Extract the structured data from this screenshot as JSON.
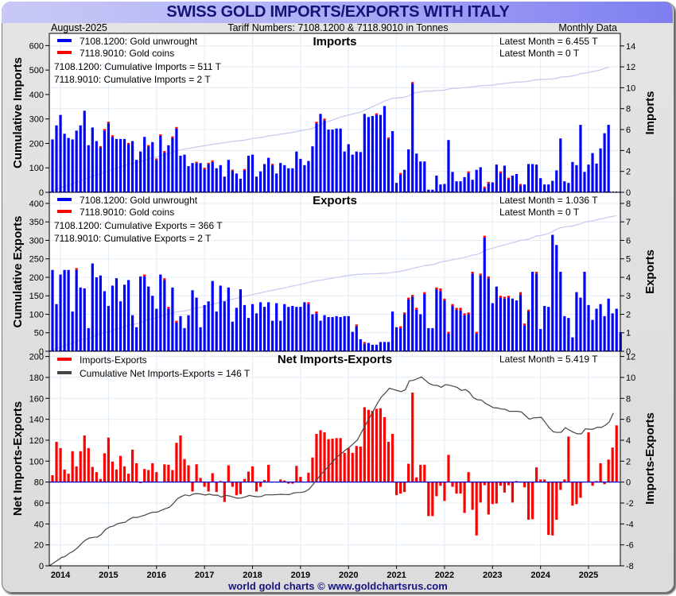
{
  "header": {
    "title": "SWISS GOLD IMPORTS/EXPORTS WITH ITALY",
    "date": "August-2025",
    "tariff": "Tariff Numbers: 7108.1200 & 7118.9010 in Tonnes",
    "frequency": "Monthly Data"
  },
  "footer": "world gold charts © www.goldchartsrus.com",
  "colors": {
    "unwrought": "#0000ff",
    "coins": "#ff0000",
    "net": "#ff0000",
    "cumulative_net": "#444444",
    "cumulative_light": "#c8c8f0",
    "grid": "#e2ecf6"
  },
  "chart_data": [
    {
      "type": "bar",
      "title": "Imports",
      "ylabel_left": "Cumulative Imports",
      "ylabel_right": "Imports",
      "ylim_left": [
        0,
        650
      ],
      "yticks_left": [
        0,
        100,
        200,
        300,
        400,
        500,
        600
      ],
      "ylim_right": [
        0,
        15.2
      ],
      "yticks_right": [
        0,
        2,
        4,
        6,
        8,
        10,
        12,
        14
      ],
      "legend": [
        "7108.1200: Gold unwrought",
        "7118.9010: Gold coins"
      ],
      "annotations": [
        "7108.1200: Cumulative Imports = 511 T",
        "7118.9010: Cumulative Imports = 2 T",
        "Latest Month = 6.455 T",
        "Latest Month = 0 T"
      ],
      "start": "2013-11",
      "series": [
        {
          "name": "7108.1200: Gold unwrought",
          "values": [
            5.06,
            6.4,
            7.4,
            5.6,
            5.2,
            5.06,
            5.9,
            6.4,
            7.8,
            4.5,
            6.2,
            4.9,
            4.3,
            5.9,
            6.6,
            5.3,
            5.1,
            5.1,
            5.1,
            4.6,
            4.9,
            3.1,
            3.9,
            5.3,
            4.4,
            4.8,
            3.1,
            5.4,
            3.8,
            4.5,
            5.2,
            6.1,
            3.5,
            3.6,
            2.5,
            2.8,
            2.8,
            2.8,
            2.2,
            2.7,
            2.9,
            2.3,
            2.6,
            1.5,
            3.1,
            2.05,
            1.8,
            1.3,
            2.1,
            3.5,
            3.6,
            1.5,
            2.0,
            2.7,
            3.3,
            2.6,
            1.8,
            2.8,
            2.6,
            2.3,
            2.3,
            3.9,
            3.2,
            2.6,
            3.0,
            4.4,
            6.6,
            7.5,
            6.9,
            6.0,
            6.0,
            6.1,
            6.1,
            3.9,
            4.6,
            3.6,
            3.9,
            3.85,
            7.5,
            7.2,
            7.3,
            7.4,
            7.4,
            8.25,
            5.1,
            5.85,
            0.9,
            1.7,
            2.15,
            4.1,
            10.4,
            3.7,
            2.95,
            2.95,
            0.25,
            0.25,
            1.6,
            0.75,
            0.8,
            5.0,
            1.95,
            1.05,
            1.05,
            1.45,
            1.85,
            1.2,
            2.15,
            2.4,
            0.4,
            0.85,
            0.95,
            2.65,
            1.85,
            2.55,
            1.25,
            1.6,
            1.75,
            0.65,
            0.75,
            2.7,
            2.7,
            2.65,
            1.35,
            0.75,
            0.75,
            1.1,
            2.1,
            5.15,
            1.05,
            0.9,
            2.9,
            2.6,
            6.45,
            1.95,
            2.65,
            3.75,
            2.75,
            4.2,
            5.65,
            6.455
          ]
        },
        {
          "name": "7118.9010: Gold coins",
          "values": [
            0,
            0,
            0,
            0,
            0,
            0,
            0,
            0,
            0,
            0,
            0,
            0,
            0.12,
            0.15,
            0.15,
            0.15,
            0,
            0,
            0,
            0.12,
            0,
            0,
            0,
            0,
            0.12,
            0,
            0.14,
            0.14,
            0.15,
            0,
            0.15,
            0.15,
            0,
            0,
            0,
            0,
            0.12,
            0,
            0.15,
            0.12,
            0.15,
            0,
            0,
            0,
            0,
            0.12,
            0,
            0,
            0.12,
            0,
            0,
            0,
            0,
            0,
            0,
            0.12,
            0,
            0,
            0,
            0,
            0,
            0,
            0,
            0,
            0,
            0,
            0.15,
            0,
            0.15,
            0,
            0,
            0,
            0,
            0,
            0,
            0,
            0,
            0,
            0,
            0,
            0,
            0.15,
            0,
            0,
            0.15,
            0,
            0,
            0.15,
            0,
            0,
            0.15,
            0,
            0,
            0,
            0,
            0,
            0,
            0,
            0,
            0,
            0,
            0,
            0,
            0,
            0.15,
            0,
            0,
            0,
            0.15,
            0.15,
            0,
            0,
            0.15,
            0,
            0.15,
            0,
            0,
            0.15,
            0,
            0,
            0,
            0,
            0,
            0,
            0,
            0,
            0,
            0,
            0,
            0,
            0,
            0,
            0,
            0,
            0,
            0,
            0,
            0,
            0,
            0
          ]
        },
        {
          "name": "Cumulative (left axis)",
          "values_note": "light line rising from 0 to ~513",
          "endpoints": [
            0,
            513
          ]
        }
      ]
    },
    {
      "type": "bar",
      "title": "Exports",
      "ylabel_left": "Cumulative Exports",
      "ylabel_right": "Exports",
      "ylim_left": [
        0,
        430
      ],
      "yticks_left": [
        0,
        50,
        100,
        150,
        200,
        250,
        300,
        350,
        400
      ],
      "ylim_right": [
        0,
        8.6
      ],
      "yticks_right": [
        0,
        1,
        2,
        3,
        4,
        5,
        6,
        7,
        8
      ],
      "legend": [
        "7108.1200: Gold unwrought",
        "7118.9010: Gold coins"
      ],
      "annotations": [
        "7108.1200: Cumulative Exports = 366 T",
        "7118.9010: Cumulative Exports = 2 T",
        "Latest Month = 1.036 T",
        "Latest Month = 0 T"
      ],
      "start": "2013-11",
      "series": [
        {
          "name": "7108.1200: Gold unwrought",
          "values": [
            4.4,
            2.55,
            4.15,
            4.4,
            4.4,
            2.15,
            4.4,
            3.45,
            3.4,
            1.25,
            4.75,
            4.0,
            4.1,
            3.25,
            2.45,
            3.55,
            3.95,
            2.7,
            3.6,
            3.85,
            1.95,
            1.3,
            4.05,
            4.05,
            3.5,
            3.0,
            2.3,
            4.15,
            3.85,
            2.3,
            3.45,
            1.55,
            1.9,
            1.25,
            1.95,
            3.3,
            2.9,
            1.3,
            2.5,
            2.7,
            3.8,
            2.15,
            3.55,
            2.7,
            3.45,
            1.6,
            2.35,
            3.35,
            2.5,
            1.8,
            2.55,
            2.05,
            2.65,
            2.4,
            2.65,
            1.65,
            2.6,
            1.65,
            2.55,
            2.4,
            2.45,
            2.4,
            2.4,
            2.65,
            2.55,
            2.0,
            2.05,
            1.65,
            1.95,
            1.85,
            1.85,
            1.9,
            1.85,
            1.9,
            1.9,
            1.05,
            1.35,
            0.65,
            0.4,
            0.45,
            0.35,
            0.35,
            0.5,
            0.5,
            0.5,
            2.15,
            1.3,
            1.25,
            2.0,
            2.8,
            2.95,
            2.25,
            2.0,
            3.1,
            1.25,
            1.25,
            3.35,
            3.25,
            2.75,
            0.95,
            2.45,
            2.25,
            2.2,
            1.95,
            2.0,
            4.2,
            0.95,
            4.1,
            6.15,
            3.95,
            2.6,
            3.5,
            2.9,
            2.85,
            2.9,
            2.85,
            2.75,
            3.05,
            1.4,
            2.15,
            4.3,
            4.2,
            1.2,
            2.45,
            2.4,
            6.3,
            5.75,
            4.3,
            1.9,
            1.8,
            0.75,
            3.2,
            2.9,
            4.3,
            2.5,
            1.7,
            2.3,
            2.55,
            1.9,
            2.85,
            2.05,
            2.3,
            1.036
          ]
        },
        {
          "name": "7118.9010: Gold coins",
          "values": [
            0,
            0,
            0,
            0,
            0,
            0,
            0.1,
            0,
            0,
            0,
            0,
            0,
            0,
            0,
            0,
            0,
            0,
            0,
            0,
            0,
            0,
            0,
            0,
            0.1,
            0,
            0,
            0,
            0,
            0.1,
            0.1,
            0,
            0.1,
            0,
            0,
            0,
            0,
            0,
            0,
            0,
            0,
            0,
            0,
            0,
            0,
            0,
            0,
            0,
            0,
            0,
            0,
            0,
            0,
            0,
            0,
            0,
            0,
            0,
            0,
            0,
            0,
            0,
            0,
            0,
            0,
            0.1,
            0,
            0.1,
            0,
            0,
            0,
            0,
            0,
            0,
            0,
            0,
            0,
            0.1,
            0,
            0.1,
            0,
            0,
            0,
            0,
            0,
            0,
            0,
            0,
            0.1,
            0.1,
            0.1,
            0.1,
            0.1,
            0,
            0.1,
            0,
            0,
            0.1,
            0.15,
            0.1,
            0.1,
            0.1,
            0.1,
            0.15,
            0.1,
            0.1,
            0.1,
            0.1,
            0.1,
            0.1,
            0.1,
            0,
            0,
            0.1,
            0.1,
            0.1,
            0,
            0,
            0.15,
            0.1,
            0.1,
            0,
            0.1,
            0,
            0,
            0,
            0,
            0,
            0,
            0,
            0,
            0,
            0,
            0,
            0,
            0,
            0,
            0,
            0,
            0,
            0,
            0,
            0
          ]
        },
        {
          "name": "Cumulative (left axis)",
          "values_note": "light line rising from 0 to ~368",
          "endpoints": [
            0,
            368
          ]
        }
      ]
    },
    {
      "type": "bar",
      "title": "Net Imports-Exports",
      "ylabel_left": "Net Imports-Exports",
      "ylabel_right": "Imports-Exports",
      "ylim_left": [
        0,
        205
      ],
      "yticks_left": [
        0,
        20,
        40,
        60,
        80,
        100,
        120,
        140,
        160,
        180,
        200
      ],
      "ylim_right": [
        -8,
        12.5
      ],
      "yticks_right": [
        -8,
        -6,
        -4,
        -2,
        0,
        2,
        4,
        6,
        8,
        10,
        12
      ],
      "legend": [
        "Imports-Exports",
        "Cumulative Net Imports-Exports = 146 T"
      ],
      "annotations": [
        "Latest Month = 5.419 T"
      ],
      "xticks": [
        "2014",
        "2015",
        "2016",
        "2017",
        "2018",
        "2019",
        "2020",
        "2021",
        "2022",
        "2023",
        "2024",
        "2025"
      ],
      "start": "2013-11",
      "series": [
        {
          "name": "Imports-Exports",
          "values": [
            0.66,
            3.85,
            3.25,
            1.2,
            0.8,
            2.95,
            1.5,
            2.95,
            4.45,
            3.25,
            1.45,
            0.95,
            0.3,
            2.75,
            4.25,
            1.95,
            1.2,
            2.5,
            1.5,
            0.8,
            3.1,
            1.8,
            -0.1,
            1.25,
            1.15,
            1.8,
            0.95,
            0.05,
            1.7,
            1.65,
            1.15,
            3.75,
            4.45,
            2.2,
            1.6,
            -0.9,
            1.7,
            0.4,
            -0.45,
            -0.9,
            0.85,
            -0.95,
            0.1,
            -1.9,
            1.6,
            -0.45,
            -1.25,
            -1.15,
            0.3,
            1.0,
            1.5,
            -0.9,
            -0.45,
            0.2,
            1.65,
            0,
            0.05,
            0.25,
            0.15,
            -0.15,
            -0.15,
            1.55,
            0.5,
            0.05,
            0.9,
            2.35,
            4.6,
            4.95,
            4.75,
            4.1,
            4.15,
            4.2,
            4.2,
            2.8,
            3.25,
            2.8,
            3.45,
            3.4,
            7.15,
            6.9,
            6.8,
            7.0,
            7.05,
            6.2,
            3.85,
            4.6,
            -1.25,
            -1.1,
            -0.95,
            1.75,
            8.55,
            0.45,
            1.65,
            1.65,
            -3.25,
            -3.25,
            -1.35,
            -0.35,
            -1.8,
            2.6,
            -0.45,
            -1.1,
            -1.1,
            -2.95,
            0.95,
            -2.65,
            -5.1,
            -1.95,
            -0.3,
            -3.1,
            -2.1,
            -2.05,
            -0.35,
            -1.0,
            -0.3,
            -1.95,
            0.1,
            0,
            -0.5,
            -3.6,
            -3.55,
            1.4,
            0.25,
            0.25,
            -5.05,
            -5.1,
            -3.6,
            -0.75,
            0.25,
            4.35,
            -2.25,
            -2.1,
            -1.5,
            0.0,
            4.75,
            -0.35,
            0.1,
            1.8,
            -0.2,
            2.15,
            3.3,
            5.419
          ]
        },
        {
          "name": "Cumulative Net Imports-Exports (left axis)",
          "values": [
            0,
            2.6,
            5.2,
            7.8,
            9.0,
            12.0,
            14.0,
            17.0,
            21.0,
            24.5,
            26.5,
            27.2,
            27.5,
            30.0,
            34.5,
            37.0,
            38.0,
            40.2,
            41.0,
            41.7,
            44.5,
            46.3,
            46.2,
            47.4,
            48.5,
            50.3,
            51.2,
            51.3,
            53.0,
            54.6,
            55.8,
            59.5,
            64.0,
            66.2,
            67.8,
            66.9,
            68.6,
            69.0,
            68.5,
            67.6,
            68.5,
            67.5,
            67.6,
            65.7,
            67.3,
            66.8,
            65.6,
            64.5,
            64.8,
            65.8,
            67.3,
            66.4,
            66.0,
            66.2,
            67.8,
            67.8,
            67.9,
            68.1,
            68.3,
            68.1,
            68.0,
            69.5,
            70.0,
            70.1,
            71.0,
            73.4,
            78.0,
            83.0,
            87.7,
            91.8,
            96.0,
            100.2,
            104.4,
            107.2,
            110.5,
            113.3,
            116.7,
            120.1,
            127.3,
            134.2,
            141.0,
            148.0,
            155.1,
            161.3,
            165.1,
            169.7,
            168.5,
            167.4,
            166.4,
            168.2,
            176.7,
            177.2,
            178.8,
            180.5,
            177.2,
            174.0,
            172.6,
            172.3,
            170.5,
            173.1,
            172.6,
            171.5,
            170.4,
            167.5,
            168.4,
            165.8,
            160.7,
            158.7,
            158.4,
            155.3,
            153.2,
            151.1,
            150.8,
            149.8,
            149.5,
            147.5,
            147.6,
            147.6,
            147.1,
            143.5,
            140.0,
            141.4,
            141.6,
            141.9,
            136.8,
            131.7,
            128.1,
            127.4,
            127.6,
            132.0,
            129.7,
            127.6,
            126.1,
            126.1,
            130.8,
            130.5,
            130.6,
            132.4,
            132.2,
            134.3,
            137.6,
            146.0
          ]
        }
      ]
    }
  ]
}
